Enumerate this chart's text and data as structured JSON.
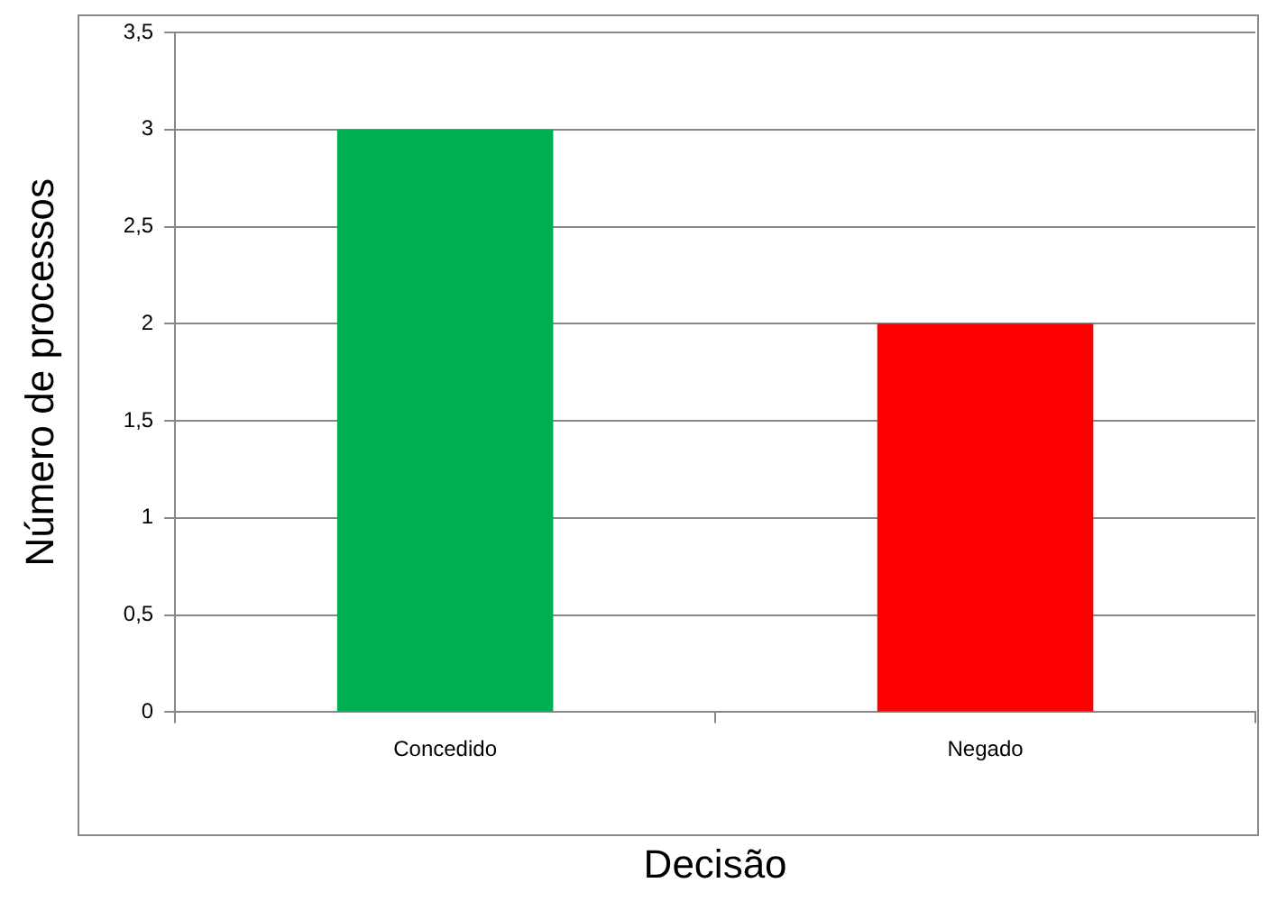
{
  "chart_data": {
    "type": "bar",
    "xlabel": "Decisão",
    "ylabel": "Número de processos",
    "categories": [
      "Concedido",
      "Negado"
    ],
    "values": [
      3,
      2
    ],
    "colors": [
      "#00b050",
      "#ff0000"
    ],
    "ylim": [
      0,
      3.5
    ],
    "yticks": [
      0,
      {
        "value": 0.5,
        "label": "0,5"
      },
      1,
      {
        "value": 1.5,
        "label": "1,5"
      },
      2,
      {
        "value": 2.5,
        "label": "2,5"
      },
      3,
      {
        "value": 3.5,
        "label": "3,5"
      }
    ],
    "grid": "y",
    "legend": false
  }
}
